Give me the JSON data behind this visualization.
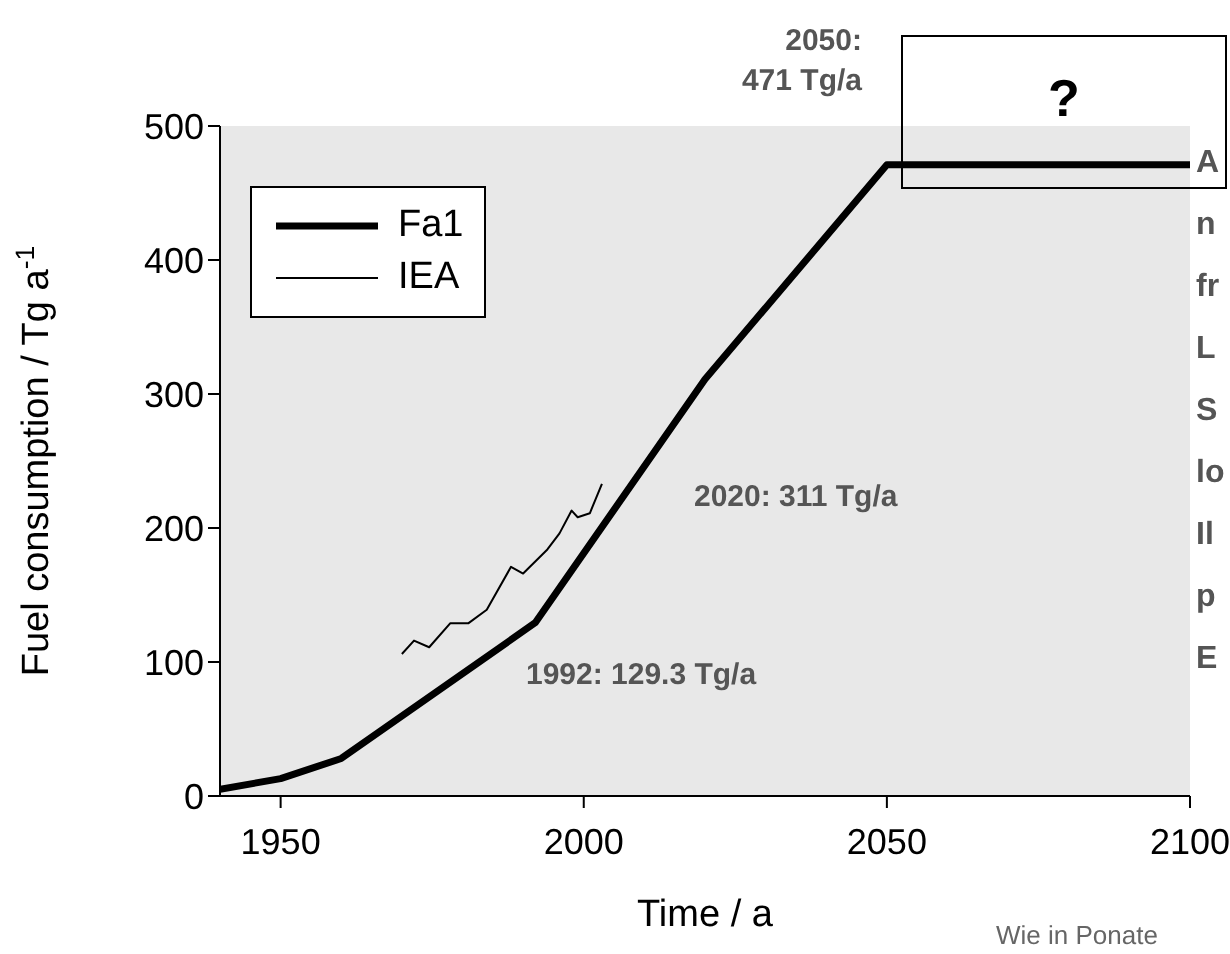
{
  "chart_data": {
    "type": "line",
    "xlabel": "Time / a",
    "ylabel": "Fuel consumption / Tg a$^{-1}$",
    "xlim": [
      1940,
      2100
    ],
    "xticks": [
      1950,
      2000,
      2050,
      2100
    ],
    "ylim": [
      0,
      500
    ],
    "yticks": [
      0,
      100,
      200,
      300,
      400,
      500
    ],
    "legend": "top left",
    "marker": "none",
    "line_style": "solid",
    "series": [
      {
        "name": "Fa1",
        "color": "#000000",
        "x": [
          1940,
          1950,
          1960,
          1992,
          2020,
          2050,
          2100
        ],
        "values": [
          5,
          13,
          28,
          129.3,
          311,
          471,
          471
        ]
      },
      {
        "name": "IEA",
        "color": "#000000",
        "x": [
          1970,
          1972,
          1974.5,
          1978,
          1981,
          1984,
          1988,
          1990,
          1994,
          1996,
          1998,
          1999,
          2001,
          2003
        ],
        "values": [
          106,
          116,
          111,
          129,
          129,
          139,
          171,
          166,
          184,
          196,
          213,
          208,
          211,
          233
        ]
      }
    ],
    "annotations": [
      "1992: 129.3 Tg/a",
      "2020: 311 Tg/a",
      "2050:\n471 Tg/a",
      "?",
      "A\nn\nfr\nL\nS\nlo\nIl\np\nE",
      "Wie in Ponate"
    ]
  }
}
